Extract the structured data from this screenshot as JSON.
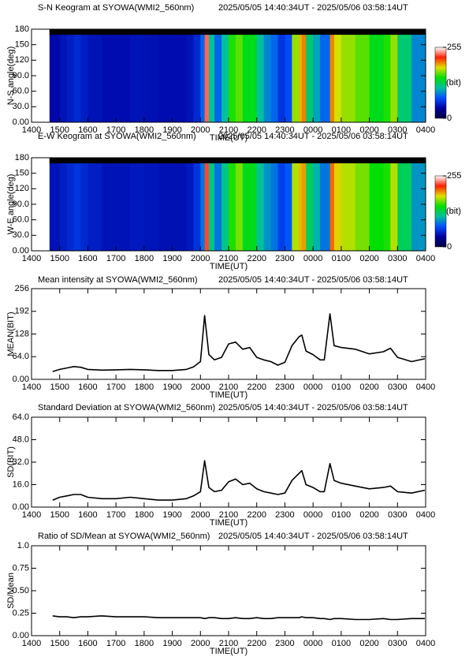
{
  "chart_data": [
    {
      "type": "heatmap",
      "title": "S-N Keogram at SYOWA(WMI2_560nm)",
      "subtitle": "2025/05/05 14:40:34UT - 2025/05/06 03:58:14UT",
      "x_label": "TIME(UT)",
      "y_label": "N-S angle(deg)",
      "x": [
        14.75,
        15,
        15.25,
        15.5,
        15.75,
        16,
        16.5,
        17,
        17.5,
        18,
        18.5,
        19,
        19.5,
        19.75,
        20,
        20.15,
        20.3,
        20.5,
        20.75,
        21,
        21.25,
        21.5,
        21.75,
        22,
        22.25,
        22.5,
        22.75,
        23,
        23.25,
        23.5,
        23.6,
        23.75,
        24,
        24.25,
        24.4,
        24.6,
        24.75,
        25,
        25.5,
        26,
        26.5,
        26.75,
        27,
        27.5,
        27.97
      ],
      "values": [
        40,
        45,
        50,
        55,
        50,
        45,
        42,
        42,
        45,
        44,
        42,
        42,
        45,
        55,
        80,
        230,
        110,
        80,
        110,
        150,
        160,
        140,
        140,
        110,
        90,
        80,
        60,
        70,
        170,
        190,
        200,
        120,
        100,
        80,
        80,
        200,
        180,
        170,
        160,
        140,
        150,
        170,
        120,
        90,
        100
      ],
      "xlim": [
        14,
        28
      ],
      "xticks": [
        {
          "value": 14,
          "label": "1400"
        },
        {
          "value": 15,
          "label": "1500"
        },
        {
          "value": 16,
          "label": "1600"
        },
        {
          "value": 17,
          "label": "1700"
        },
        {
          "value": 18,
          "label": "1800"
        },
        {
          "value": 19,
          "label": "1900"
        },
        {
          "value": 20,
          "label": "2000"
        },
        {
          "value": 21,
          "label": "2100"
        },
        {
          "value": 22,
          "label": "2200"
        },
        {
          "value": 23,
          "label": "2300"
        },
        {
          "value": 24,
          "label": "0000"
        },
        {
          "value": 25,
          "label": "0100"
        },
        {
          "value": 26,
          "label": "0200"
        },
        {
          "value": 27,
          "label": "0300"
        },
        {
          "value": 28,
          "label": "0400"
        }
      ],
      "ylim": [
        0,
        180
      ],
      "yticks": [
        {
          "value": 0,
          "label": "0.00"
        },
        {
          "value": 30,
          "label": "30.0"
        },
        {
          "value": 60,
          "label": "60.0"
        },
        {
          "value": 90,
          "label": "90.0"
        },
        120,
        150,
        180
      ],
      "colormap": [
        "#000040",
        "#0000a0",
        "#0050ff",
        "#00c0a0",
        "#00e000",
        "#e0e000",
        "#ff2000",
        "#ffffff"
      ],
      "colorbar": {
        "label": "(bit)",
        "ticks": [
          0,
          255
        ]
      }
    },
    {
      "type": "heatmap",
      "title": "E-W Keogram at SYOWA(WMI2_560nm)",
      "subtitle": "2025/05/05 14:40:34UT - 2025/05/06 03:58:14UT",
      "x_label": "TIME(UT)",
      "y_label": "W-E angle(deg)",
      "x": [
        14.75,
        15,
        15.25,
        15.5,
        15.75,
        16,
        16.5,
        17,
        17.5,
        18,
        18.5,
        19,
        19.5,
        19.75,
        20,
        20.15,
        20.3,
        20.5,
        20.75,
        21,
        21.25,
        21.5,
        21.75,
        22,
        22.25,
        22.5,
        22.75,
        23,
        23.25,
        23.5,
        23.6,
        23.75,
        24,
        24.25,
        24.4,
        24.6,
        24.75,
        25,
        25.5,
        26,
        26.5,
        26.75,
        27,
        27.5,
        27.97
      ],
      "values": [
        45,
        50,
        55,
        60,
        55,
        50,
        45,
        45,
        48,
        46,
        44,
        44,
        48,
        60,
        85,
        225,
        115,
        85,
        115,
        150,
        165,
        140,
        140,
        110,
        95,
        85,
        65,
        75,
        175,
        190,
        195,
        125,
        105,
        85,
        85,
        205,
        185,
        175,
        165,
        145,
        150,
        175,
        125,
        95,
        105
      ],
      "xlim": [
        14,
        28
      ],
      "xticks": [
        {
          "value": 14,
          "label": "1400"
        },
        {
          "value": 15,
          "label": "1500"
        },
        {
          "value": 16,
          "label": "1600"
        },
        {
          "value": 17,
          "label": "1700"
        },
        {
          "value": 18,
          "label": "1800"
        },
        {
          "value": 19,
          "label": "1900"
        },
        {
          "value": 20,
          "label": "2000"
        },
        {
          "value": 21,
          "label": "2100"
        },
        {
          "value": 22,
          "label": "2200"
        },
        {
          "value": 23,
          "label": "2300"
        },
        {
          "value": 24,
          "label": "0000"
        },
        {
          "value": 25,
          "label": "0100"
        },
        {
          "value": 26,
          "label": "0200"
        },
        {
          "value": 27,
          "label": "0300"
        },
        {
          "value": 28,
          "label": "0400"
        }
      ],
      "ylim": [
        0,
        180
      ],
      "yticks": [
        {
          "value": 0,
          "label": "0.00"
        },
        {
          "value": 30,
          "label": "30.0"
        },
        {
          "value": 60,
          "label": "60.0"
        },
        {
          "value": 90,
          "label": "90.0"
        },
        120,
        150,
        180
      ],
      "colormap": [
        "#000040",
        "#0000a0",
        "#0050ff",
        "#00c0a0",
        "#00e000",
        "#e0e000",
        "#ff2000",
        "#ffffff"
      ],
      "colorbar": {
        "label": "(bit)",
        "ticks": [
          0,
          255
        ]
      }
    },
    {
      "type": "line",
      "title": "Mean intensity at SYOWA(WMI2_560nm)",
      "subtitle": "2025/05/05 14:40:34UT - 2025/05/06 03:58:14UT",
      "x_label": "TIME(UT)",
      "y_label": "MEAN(BIT)",
      "color": "#000000",
      "x": [
        14.75,
        15,
        15.25,
        15.5,
        15.75,
        16,
        16.5,
        17,
        17.5,
        18,
        18.5,
        19,
        19.5,
        19.75,
        20,
        20.15,
        20.3,
        20.5,
        20.75,
        21,
        21.25,
        21.5,
        21.75,
        22,
        22.25,
        22.5,
        22.75,
        23,
        23.25,
        23.5,
        23.6,
        23.75,
        24,
        24.25,
        24.4,
        24.6,
        24.75,
        25,
        25.5,
        26,
        26.5,
        26.75,
        27,
        27.5,
        27.97
      ],
      "values": [
        22,
        28,
        32,
        36,
        34,
        28,
        26,
        27,
        28,
        27,
        25,
        25,
        28,
        35,
        50,
        180,
        70,
        55,
        62,
        100,
        105,
        85,
        90,
        62,
        55,
        50,
        40,
        48,
        95,
        120,
        125,
        80,
        70,
        55,
        55,
        185,
        95,
        90,
        85,
        72,
        78,
        88,
        62,
        50,
        58
      ],
      "xlim": [
        14,
        28
      ],
      "xticks": [
        {
          "value": 14,
          "label": "1400"
        },
        {
          "value": 15,
          "label": "1500"
        },
        {
          "value": 16,
          "label": "1600"
        },
        {
          "value": 17,
          "label": "1700"
        },
        {
          "value": 18,
          "label": "1800"
        },
        {
          "value": 19,
          "label": "1900"
        },
        {
          "value": 20,
          "label": "2000"
        },
        {
          "value": 21,
          "label": "2100"
        },
        {
          "value": 22,
          "label": "2200"
        },
        {
          "value": 23,
          "label": "2300"
        },
        {
          "value": 24,
          "label": "0000"
        },
        {
          "value": 25,
          "label": "0100"
        },
        {
          "value": 26,
          "label": "0200"
        },
        {
          "value": 27,
          "label": "0300"
        },
        {
          "value": 28,
          "label": "0400"
        }
      ],
      "ylim": [
        0,
        256
      ],
      "yticks": [
        {
          "value": 0,
          "label": "0.00"
        },
        {
          "value": 64,
          "label": "64.0"
        },
        128,
        192,
        256
      ]
    },
    {
      "type": "line",
      "title": "Standard Deviation at SYOWA(WMI2_560nm)",
      "subtitle": "2025/05/05 14:40:34UT - 2025/05/06 03:58:14UT",
      "x_label": "TIME(UT)",
      "y_label": "SD(BIT)",
      "color": "#000000",
      "x": [
        14.75,
        15,
        15.25,
        15.5,
        15.75,
        16,
        16.5,
        17,
        17.5,
        18,
        18.5,
        19,
        19.5,
        19.75,
        20,
        20.15,
        20.3,
        20.5,
        20.75,
        21,
        21.25,
        21.5,
        21.75,
        22,
        22.25,
        22.5,
        22.75,
        23,
        23.25,
        23.5,
        23.6,
        23.75,
        24,
        24.25,
        24.4,
        24.6,
        24.75,
        25,
        25.5,
        26,
        26.5,
        26.75,
        27,
        27.5,
        27.97
      ],
      "values": [
        5,
        7,
        8,
        9,
        9,
        7,
        6,
        6,
        7,
        6,
        5,
        5,
        6,
        8,
        11,
        33,
        14,
        11,
        12,
        18,
        20,
        16,
        17,
        13,
        11,
        10,
        9,
        10,
        19,
        24,
        26,
        16,
        14,
        11,
        11,
        31,
        19,
        17,
        15,
        13,
        14,
        15,
        11,
        10,
        12
      ],
      "xlim": [
        14,
        28
      ],
      "xticks": [
        {
          "value": 14,
          "label": "1400"
        },
        {
          "value": 15,
          "label": "1500"
        },
        {
          "value": 16,
          "label": "1600"
        },
        {
          "value": 17,
          "label": "1700"
        },
        {
          "value": 18,
          "label": "1800"
        },
        {
          "value": 19,
          "label": "1900"
        },
        {
          "value": 20,
          "label": "2000"
        },
        {
          "value": 21,
          "label": "2100"
        },
        {
          "value": 22,
          "label": "2200"
        },
        {
          "value": 23,
          "label": "2300"
        },
        {
          "value": 24,
          "label": "0000"
        },
        {
          "value": 25,
          "label": "0100"
        },
        {
          "value": 26,
          "label": "0200"
        },
        {
          "value": 27,
          "label": "0300"
        },
        {
          "value": 28,
          "label": "0400"
        }
      ],
      "ylim": [
        0,
        64
      ],
      "yticks": [
        {
          "value": 0,
          "label": "0.00"
        },
        {
          "value": 16,
          "label": "16.0"
        },
        {
          "value": 32,
          "label": "32.0"
        },
        {
          "value": 48,
          "label": "48.0"
        },
        {
          "value": 64,
          "label": "64.0"
        }
      ]
    },
    {
      "type": "line",
      "title": "Ratio of SD/Mean at SYOWA(WMI2_560nm)",
      "subtitle": "2025/05/05 14:40:34UT - 2025/05/06 03:58:14UT",
      "x_label": "TIME(UT)",
      "y_label": "SD/Mean",
      "color": "#000000",
      "x": [
        14.75,
        15,
        15.25,
        15.5,
        15.75,
        16,
        16.5,
        17,
        17.5,
        18,
        18.5,
        19,
        19.5,
        19.75,
        20,
        20.15,
        20.3,
        20.5,
        20.75,
        21,
        21.25,
        21.5,
        21.75,
        22,
        22.25,
        22.5,
        22.75,
        23,
        23.25,
        23.5,
        23.6,
        23.75,
        24,
        24.25,
        24.4,
        24.6,
        24.75,
        25,
        25.5,
        26,
        26.5,
        26.75,
        27,
        27.5,
        27.97
      ],
      "values": [
        0.22,
        0.21,
        0.21,
        0.2,
        0.21,
        0.21,
        0.22,
        0.21,
        0.21,
        0.21,
        0.2,
        0.2,
        0.2,
        0.2,
        0.2,
        0.19,
        0.2,
        0.2,
        0.19,
        0.19,
        0.2,
        0.19,
        0.19,
        0.2,
        0.19,
        0.19,
        0.2,
        0.2,
        0.2,
        0.2,
        0.21,
        0.2,
        0.2,
        0.19,
        0.19,
        0.18,
        0.19,
        0.19,
        0.18,
        0.18,
        0.19,
        0.18,
        0.18,
        0.19,
        0.19
      ],
      "xlim": [
        14,
        28
      ],
      "xticks": [
        {
          "value": 14,
          "label": "1400"
        },
        {
          "value": 15,
          "label": "1500"
        },
        {
          "value": 16,
          "label": "1600"
        },
        {
          "value": 17,
          "label": "1700"
        },
        {
          "value": 18,
          "label": "1800"
        },
        {
          "value": 19,
          "label": "1900"
        },
        {
          "value": 20,
          "label": "2000"
        },
        {
          "value": 21,
          "label": "2100"
        },
        {
          "value": 22,
          "label": "2200"
        },
        {
          "value": 23,
          "label": "2300"
        },
        {
          "value": 24,
          "label": "0000"
        },
        {
          "value": 25,
          "label": "0100"
        },
        {
          "value": 26,
          "label": "0200"
        },
        {
          "value": 27,
          "label": "0300"
        },
        {
          "value": 28,
          "label": "0400"
        }
      ],
      "ylim": [
        0,
        1
      ],
      "yticks": [
        {
          "value": 0,
          "label": "0.00"
        },
        0.25,
        {
          "value": 0.5,
          "label": "0.50"
        },
        0.75,
        {
          "value": 1,
          "label": "1.0"
        }
      ]
    }
  ]
}
